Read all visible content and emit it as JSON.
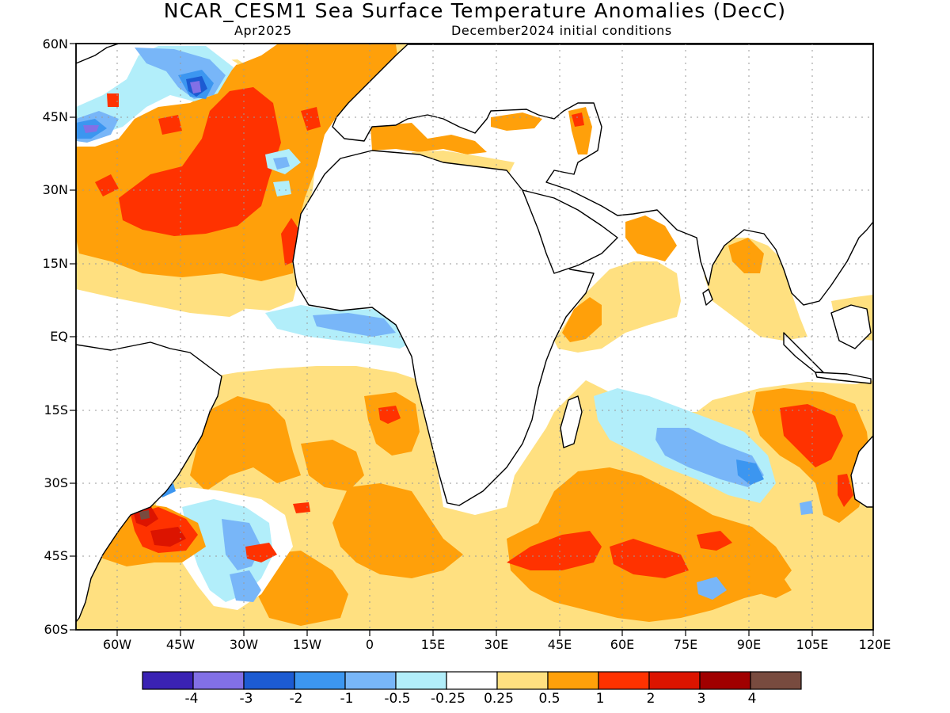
{
  "title": "NCAR_CESM1 Sea Surface Temperature Anomalies (DecC)",
  "subtitle_left": "Apr2025",
  "subtitle_right": "December2024 initial conditions",
  "lat_labels": [
    "60N",
    "45N",
    "30N",
    "15N",
    "EQ",
    "15S",
    "30S",
    "45S",
    "60S"
  ],
  "lon_labels": [
    "60W",
    "45W",
    "30W",
    "15W",
    "0",
    "15E",
    "30E",
    "45E",
    "60E",
    "75E",
    "90E",
    "105E",
    "120E"
  ],
  "colorbar": {
    "colors": [
      "#3a22b4",
      "#8270e6",
      "#1c5bd2",
      "#3c96f0",
      "#78b6f8",
      "#b2eefa",
      "#ffffff",
      "#ffe080",
      "#ffa00a",
      "#ff3200",
      "#dc1400",
      "#a00000",
      "#784b3f"
    ],
    "labels": [
      "-4",
      "-3",
      "-2",
      "-1",
      "-0.5",
      "-0.25",
      "0.25",
      "0.5",
      "1",
      "2",
      "3",
      "4"
    ]
  }
}
